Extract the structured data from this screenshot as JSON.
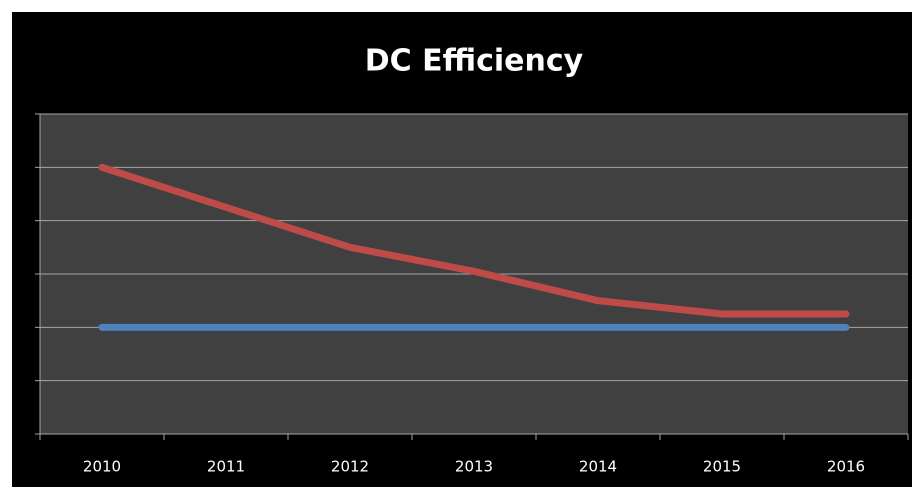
{
  "chart_data": {
    "type": "line",
    "title": "DC Efficiency",
    "categories": [
      "2010",
      "2011",
      "2012",
      "2013",
      "2014",
      "2015",
      "2016"
    ],
    "series": [
      {
        "color": "#be4b48",
        "values": [
          5.0,
          4.25,
          3.5,
          3.05,
          2.5,
          2.25,
          2.25
        ]
      },
      {
        "color": "#4f81bd",
        "values": [
          2.0,
          2.0,
          2.0,
          2.0,
          2.0,
          2.0,
          2.0
        ]
      }
    ],
    "ylim": [
      0,
      6
    ],
    "yticks": [
      0,
      1,
      2,
      3,
      4,
      5,
      6
    ],
    "grid": true
  }
}
